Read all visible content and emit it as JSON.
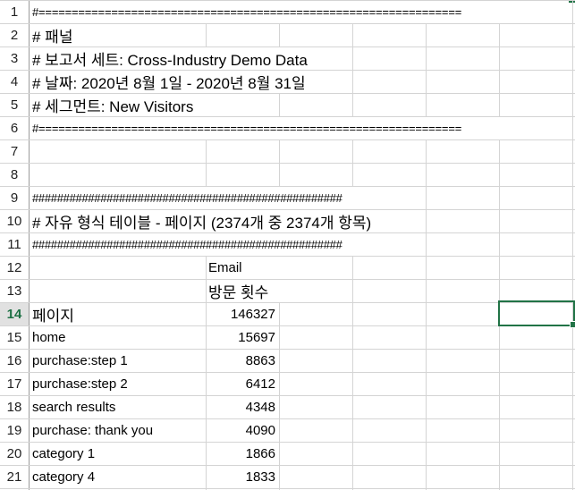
{
  "rows": [
    {
      "num": "1",
      "a": "#================================================================"
    },
    {
      "num": "2",
      "a": "# 패널"
    },
    {
      "num": "3",
      "a": "# 보고서 세트: Cross-Industry Demo Data"
    },
    {
      "num": "4",
      "a": "# 날짜: 2020년 8월 1일 - 2020년 8월 31일"
    },
    {
      "num": "5",
      "a": "# 세그먼트: New Visitors"
    },
    {
      "num": "6",
      "a": "#================================================================"
    },
    {
      "num": "7",
      "a": ""
    },
    {
      "num": "8",
      "a": ""
    },
    {
      "num": "9",
      "a": "##################################################"
    },
    {
      "num": "10",
      "a": "# 자유 형식 테이블 - 페이지 (2374개 중 2374개 항목)"
    },
    {
      "num": "11",
      "a": "##################################################"
    },
    {
      "num": "12",
      "a": "",
      "b": "Email"
    },
    {
      "num": "13",
      "a": "",
      "b": "방문 횟수"
    },
    {
      "num": "14",
      "a": "페이지",
      "b": "146327"
    },
    {
      "num": "15",
      "a": "home",
      "b": "15697"
    },
    {
      "num": "16",
      "a": "purchase:step 1",
      "b": "8863"
    },
    {
      "num": "17",
      "a": "purchase:step 2",
      "b": "6412"
    },
    {
      "num": "18",
      "a": "search results",
      "b": "4348"
    },
    {
      "num": "19",
      "a": "purchase: thank you",
      "b": "4090"
    },
    {
      "num": "20",
      "a": "category 1",
      "b": "1866"
    },
    {
      "num": "21",
      "a": "category 4",
      "b": "1833"
    }
  ],
  "colors": {
    "accent": "#217346",
    "grid": "#d4d4d4",
    "active_row_text": "#1e7145"
  }
}
